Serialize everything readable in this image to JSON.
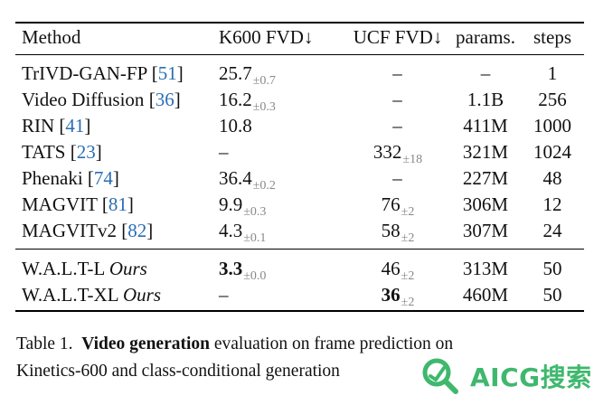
{
  "table": {
    "headers": {
      "method": "Method",
      "k600": "K600 FVD↓",
      "ucf": "UCF FVD↓",
      "params": "params.",
      "steps": "steps"
    },
    "rows": [
      {
        "name": "TrIVD-GAN-FP",
        "ref": "51",
        "k600": "25.7",
        "k600_err": "±0.7",
        "ucf": "–",
        "ucf_err": "",
        "params": "–",
        "steps": "1"
      },
      {
        "name": "Video Diffusion",
        "ref": "36",
        "k600": "16.2",
        "k600_err": "±0.3",
        "ucf": "–",
        "ucf_err": "",
        "params": "1.1B",
        "steps": "256"
      },
      {
        "name": "RIN",
        "ref": "41",
        "k600": "10.8",
        "k600_err": "",
        "ucf": "–",
        "ucf_err": "",
        "params": "411M",
        "steps": "1000"
      },
      {
        "name": "TATS",
        "ref": "23",
        "k600": "–",
        "k600_err": "",
        "ucf": "332",
        "ucf_err": "±18",
        "params": "321M",
        "steps": "1024"
      },
      {
        "name": "Phenaki",
        "ref": "74",
        "k600": "36.4",
        "k600_err": "±0.2",
        "ucf": "–",
        "ucf_err": "",
        "params": "227M",
        "steps": "48"
      },
      {
        "name": "MAGVIT",
        "ref": "81",
        "k600": "9.9",
        "k600_err": "±0.3",
        "ucf": "76",
        "ucf_err": "±2",
        "params": "306M",
        "steps": "12"
      },
      {
        "name": "MAGVITv2",
        "ref": "82",
        "k600": "4.3",
        "k600_err": "±0.1",
        "ucf": "58",
        "ucf_err": "±2",
        "params": "307M",
        "steps": "24"
      }
    ],
    "ours_rows": [
      {
        "name": "W.A.L.T-L",
        "tag": "Ours",
        "k600": "3.3",
        "k600_err": "±0.0",
        "ucf": "46",
        "ucf_err": "±2",
        "params": "313M",
        "steps": "50"
      },
      {
        "name": "W.A.L.T-XL",
        "tag": "Ours",
        "k600": "–",
        "k600_err": "",
        "ucf": "36",
        "ucf_err": "±2",
        "params": "460M",
        "steps": "50"
      }
    ]
  },
  "caption": {
    "label": "Table 1.",
    "bold": "Video generation",
    "line1_rest": "evaluation on frame prediction on",
    "line2": "Kinetics-600 and class-conditional generation"
  },
  "watermark": {
    "text": "AICG搜索",
    "icon": "magnifier-icon"
  }
}
